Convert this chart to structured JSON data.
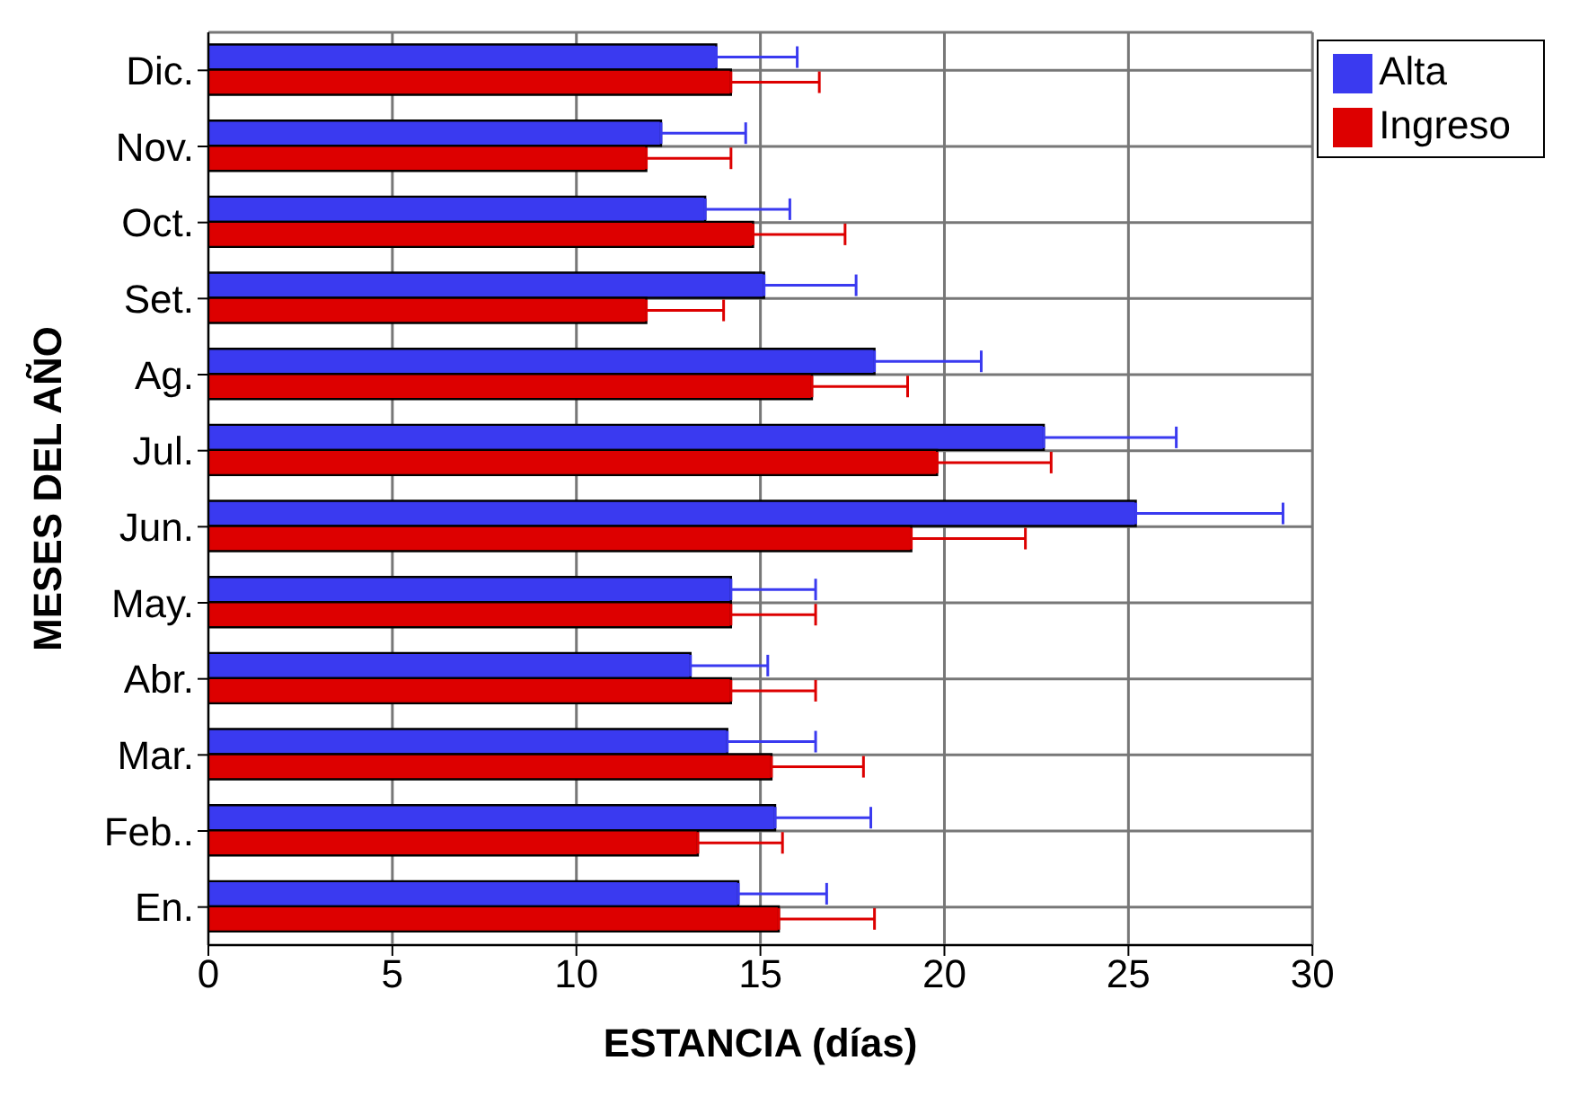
{
  "chart_data": {
    "type": "bar",
    "orientation": "horizontal",
    "xlabel": "ESTANCIA (días)",
    "ylabel": "MESES DEL AÑO",
    "categories": [
      "Dic.",
      "Nov.",
      "Oct.",
      "Set.",
      "Ag.",
      "Jul.",
      "Jun.",
      "May.",
      "Abr.",
      "Mar.",
      "Feb..",
      "En."
    ],
    "series": [
      {
        "name": "Alta",
        "color": "#3a3af0",
        "values": [
          13.8,
          12.3,
          13.5,
          15.1,
          18.1,
          22.7,
          25.2,
          14.2,
          13.1,
          14.1,
          15.4,
          14.4
        ],
        "errors": [
          [
            13.8,
            16.0
          ],
          [
            12.3,
            14.6
          ],
          [
            13.5,
            15.8
          ],
          [
            15.1,
            17.6
          ],
          [
            18.1,
            21.0
          ],
          [
            22.7,
            26.3
          ],
          [
            25.2,
            29.2
          ],
          [
            14.2,
            16.5
          ],
          [
            13.1,
            15.2
          ],
          [
            14.1,
            16.5
          ],
          [
            15.4,
            18.0
          ],
          [
            14.4,
            16.8
          ]
        ]
      },
      {
        "name": "Ingreso",
        "color": "#dd0000",
        "values": [
          14.2,
          11.9,
          14.8,
          11.9,
          16.4,
          19.8,
          19.1,
          14.2,
          14.2,
          15.3,
          13.3,
          15.5
        ],
        "errors": [
          [
            14.2,
            16.6
          ],
          [
            11.9,
            14.2
          ],
          [
            14.8,
            17.3
          ],
          [
            11.9,
            14.0
          ],
          [
            16.4,
            19.0
          ],
          [
            19.8,
            22.9
          ],
          [
            19.1,
            22.2
          ],
          [
            14.2,
            16.5
          ],
          [
            14.2,
            16.5
          ],
          [
            15.3,
            17.8
          ],
          [
            13.3,
            15.6
          ],
          [
            15.5,
            18.1
          ]
        ]
      }
    ],
    "xlim": [
      0,
      30
    ],
    "xticks": [
      0,
      5,
      10,
      15,
      20,
      25,
      30
    ],
    "grid": true,
    "legend": "top right"
  }
}
